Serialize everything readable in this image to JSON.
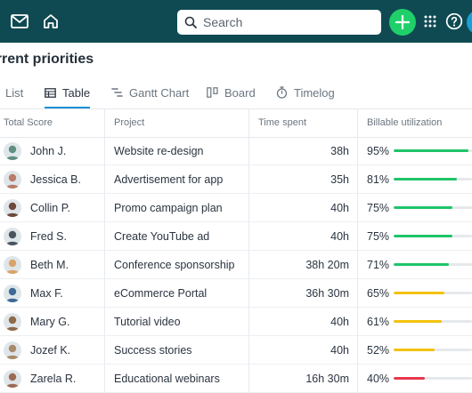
{
  "search": {
    "placeholder": "Search"
  },
  "page_title": "urrent priorities",
  "tabs": [
    {
      "label": "List",
      "icon": "list-icon",
      "active": false
    },
    {
      "label": "Table",
      "icon": "table-icon",
      "active": true
    },
    {
      "label": "Gantt Chart",
      "icon": "gantt-icon",
      "active": false
    },
    {
      "label": "Board",
      "icon": "board-icon",
      "active": false
    },
    {
      "label": "Timelog",
      "icon": "stopwatch-icon",
      "active": false
    }
  ],
  "columns": [
    "Total Score",
    "Project",
    "Time spent",
    "Billable utilization"
  ],
  "colors": {
    "green": "#1fc46a",
    "yellow": "#f4c20d",
    "red": "#e8384f",
    "topbar": "#0f4a52",
    "accent": "#1a8fd8"
  },
  "rows": [
    {
      "name": "John J.",
      "project": "Website re-design",
      "time": "38h",
      "pct": "95%",
      "value": 0.95,
      "color": "#1fc46a",
      "avatar": "#5f8f80"
    },
    {
      "name": "Jessica B.",
      "project": "Advertisement for app",
      "time": "35h",
      "pct": "81%",
      "value": 0.81,
      "color": "#1fc46a",
      "avatar": "#b97c67"
    },
    {
      "name": "Collin P.",
      "project": "Promo campaign plan",
      "time": "40h",
      "pct": "75%",
      "value": 0.75,
      "color": "#1fc46a",
      "avatar": "#6e4a3c"
    },
    {
      "name": "Fred S.",
      "project": "Create YouTube ad",
      "time": "40h",
      "pct": "75%",
      "value": 0.75,
      "color": "#1fc46a",
      "avatar": "#4a5560"
    },
    {
      "name": "Beth M.",
      "project": "Conference sponsorship",
      "time": "38h 20m",
      "pct": "71%",
      "value": 0.71,
      "color": "#1fc46a",
      "avatar": "#d9a36a"
    },
    {
      "name": "Max F.",
      "project": "eCommerce Portal",
      "time": "36h 30m",
      "pct": "65%",
      "value": 0.65,
      "color": "#f4c20d",
      "avatar": "#3e6a95"
    },
    {
      "name": "Mary G.",
      "project": "Tutorial video",
      "time": "40h",
      "pct": "61%",
      "value": 0.61,
      "color": "#f4c20d",
      "avatar": "#8f6a4a"
    },
    {
      "name": "Jozef K.",
      "project": "Success stories",
      "time": "40h",
      "pct": "52%",
      "value": 0.52,
      "color": "#f4c20d",
      "avatar": "#a88a6a"
    },
    {
      "name": "Zarela R.",
      "project": "Educational webinars",
      "time": "16h 30m",
      "pct": "40%",
      "value": 0.4,
      "color": "#e8384f",
      "avatar": "#9b6b55"
    }
  ]
}
